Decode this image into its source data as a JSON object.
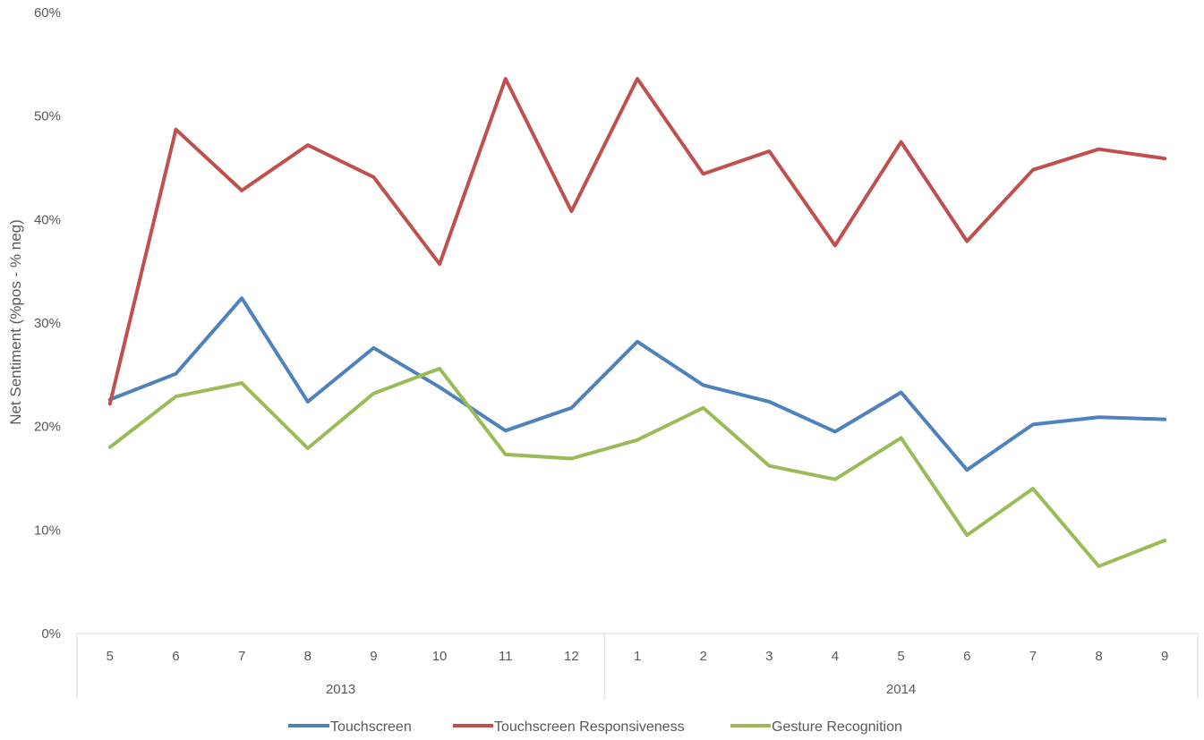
{
  "chart_data": {
    "type": "line",
    "title": "",
    "ylabel": "Net Sentiment (%pos - % neg)",
    "xlabel": "",
    "ylim": [
      0,
      60
    ],
    "yticks": [
      "0%",
      "10%",
      "20%",
      "30%",
      "40%",
      "50%",
      "60%"
    ],
    "grid": false,
    "legend": "bottom",
    "categories": [
      "5",
      "6",
      "7",
      "8",
      "9",
      "10",
      "11",
      "12",
      "1",
      "2",
      "3",
      "4",
      "5",
      "6",
      "7",
      "8",
      "9"
    ],
    "groups": [
      {
        "label": "2013",
        "start": 0,
        "end": 7
      },
      {
        "label": "2014",
        "start": 8,
        "end": 16
      }
    ],
    "series": [
      {
        "name": "Touchscreen",
        "color": "#4F81BD",
        "values": [
          22.6,
          25.1,
          32.4,
          22.4,
          27.6,
          23.8,
          19.6,
          21.8,
          28.2,
          24.0,
          22.4,
          19.5,
          23.3,
          15.8,
          20.2,
          20.9,
          20.7
        ]
      },
      {
        "name": "Touchscreen Responsiveness",
        "color": "#C0504D",
        "values": [
          22.2,
          48.7,
          42.8,
          47.2,
          44.1,
          35.7,
          53.6,
          40.8,
          53.6,
          44.4,
          46.6,
          37.5,
          47.5,
          37.9,
          44.8,
          46.8,
          45.9
        ]
      },
      {
        "name": "Gesture Recognition",
        "color": "#9BBB59",
        "values": [
          18.0,
          22.9,
          24.2,
          17.9,
          23.2,
          25.6,
          17.3,
          16.9,
          18.7,
          21.8,
          16.2,
          14.9,
          18.9,
          9.5,
          14.0,
          6.5,
          9.0
        ]
      }
    ]
  }
}
